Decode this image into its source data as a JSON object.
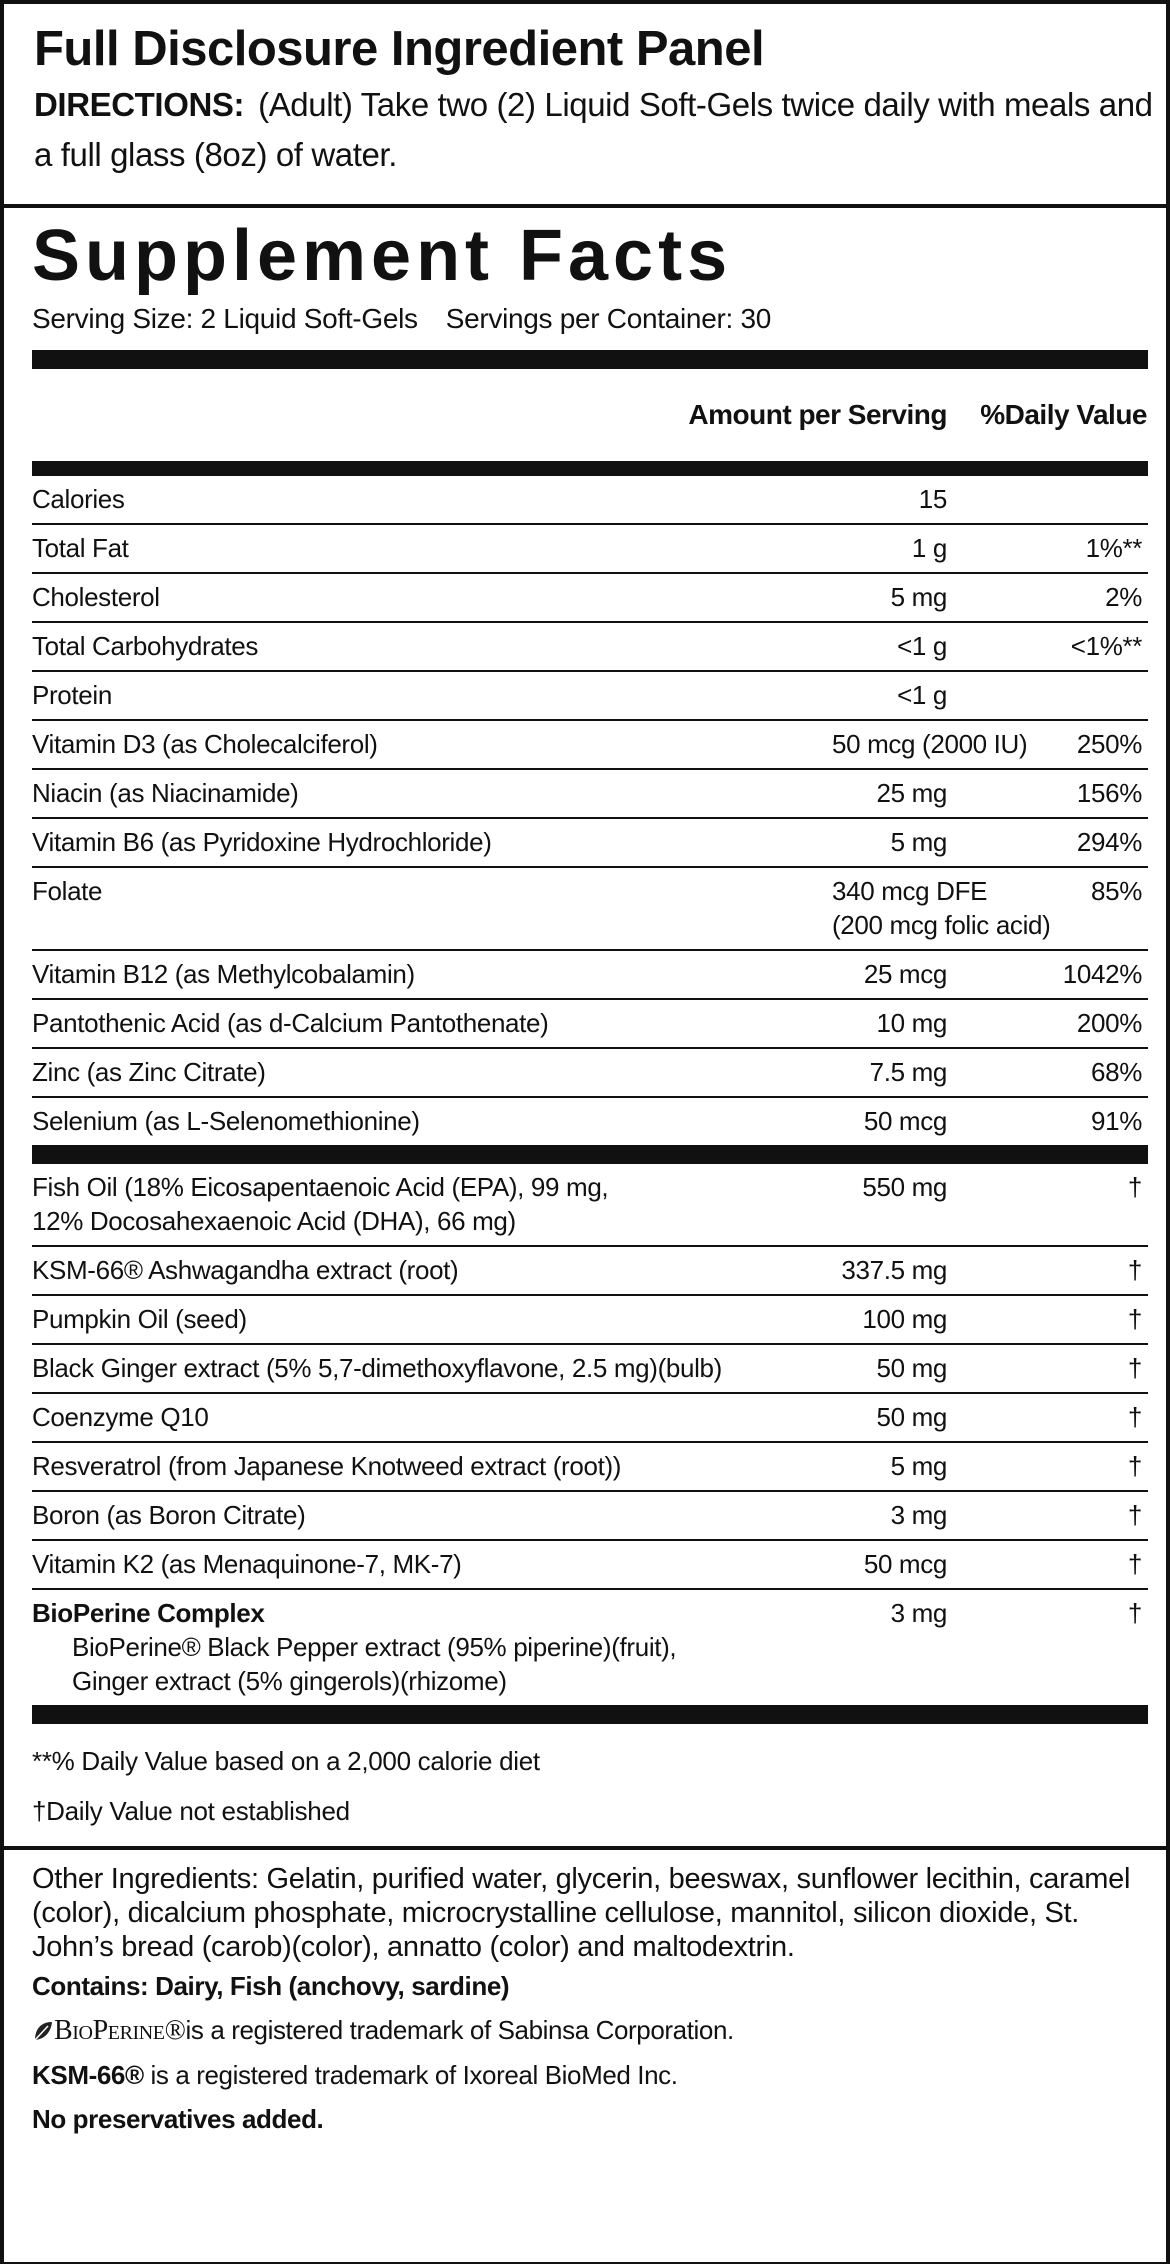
{
  "header": {
    "title": "Full Disclosure Ingredient Panel",
    "directions_label": "DIRECTIONS:",
    "directions": "(Adult) Take two (2) Liquid Soft-Gels twice daily with meals and a full glass (8oz) of water."
  },
  "facts": {
    "title": "Supplement Facts",
    "serving_size": "Serving Size:  2 Liquid Soft-Gels",
    "servings": "Servings per Container:  30",
    "columns": [
      "Amount per Serving",
      "%Daily Value"
    ],
    "rows": [
      {
        "name": "Calories",
        "amount": "15"
      },
      {
        "name": "Total Fat",
        "amount": "1 g",
        "daily_value": "1%**"
      },
      {
        "name": "Cholesterol",
        "amount": "5 mg",
        "daily_value": "2%"
      },
      {
        "name": "Total Carbohydrates",
        "amount": "<1 g",
        "daily_value": "<1%**"
      },
      {
        "name": "Protein",
        "amount": "<1 g"
      },
      {
        "name": "Vitamin D3 (as Cholecalciferol)",
        "amount": "50 mcg (2000 IU)",
        "daily_value": "250%"
      },
      {
        "name": "Niacin (as Niacinamide)",
        "amount": "25 mg",
        "daily_value": "156%"
      },
      {
        "name": "Vitamin B6 (as Pyridoxine Hydrochloride)",
        "amount": "5 mg",
        "daily_value": "294%"
      },
      {
        "name": "Folate",
        "amount": [
          "340 mcg DFE",
          "(200 mcg folic acid)"
        ],
        "daily_value": "85%"
      },
      {
        "name": "Vitamin B12 (as Methylcobalamin)",
        "amount": "25 mcg",
        "daily_value": "1042%"
      },
      {
        "name": "Pantothenic Acid (as d-Calcium Pantothenate)",
        "amount": "10 mg",
        "daily_value": "200%"
      },
      {
        "name": "Zinc (as Zinc Citrate)",
        "amount": "7.5 mg",
        "daily_value": "68%"
      },
      {
        "name": "Selenium (as L-Selenomethionine)",
        "amount": "50 mcg",
        "daily_value": "91%"
      }
    ],
    "other_rows": [
      {
        "name": [
          "Fish Oil (18% Eicosapentaenoic Acid (EPA), 99 mg,",
          "12% Docosahexaenoic Acid (DHA), 66 mg)"
        ],
        "amount": "550 mg",
        "daily_value": "†"
      },
      {
        "name": "KSM-66® Ashwagandha extract (root)",
        "amount": "337.5 mg",
        "daily_value": "†"
      },
      {
        "name": "Pumpkin Oil (seed)",
        "amount": "100 mg",
        "daily_value": "†"
      },
      {
        "name": "Black Ginger extract (5% 5,7-dimethoxyflavone, 2.5 mg)(bulb)",
        "amount": "50 mg",
        "daily_value": "†"
      },
      {
        "name": "Coenzyme Q10",
        "amount": "50 mg",
        "daily_value": "†"
      },
      {
        "name": "Resveratrol (from Japanese Knotweed extract (root))",
        "amount": "5 mg",
        "daily_value": "†"
      },
      {
        "name": "Boron (as Boron Citrate)",
        "amount": "3 mg",
        "daily_value": "†"
      },
      {
        "name": "Vitamin K2 (as Menaquinone-7, MK-7)",
        "amount": "50 mcg",
        "daily_value": "†"
      },
      {
        "name": "BioPerine Complex",
        "amount": "3 mg",
        "daily_value": "†",
        "detail": [
          "BioPerine® Black Pepper extract (95% piperine)(fruit),",
          "Ginger extract (5% gingerols)(rhizome)"
        ]
      }
    ],
    "footnotes": [
      "**% Daily Value based on a 2,000 calorie diet",
      "†Daily Value not established"
    ]
  },
  "other": {
    "ingredients": "Other Ingredients: Gelatin, purified water, glycerin, beeswax, sunflower lecithin, caramel (color), dicalcium phosphate, microcrystalline cellulose, mannitol, silicon dioxide, St. John’s bread (carob)(color), annatto (color) and maltodextrin.",
    "contains": "Contains:  Dairy, Fish (anchovy, sardine)",
    "trademark1_brand": "BioPerine®",
    "trademark1": "is a registered trademark of Sabinsa Corporation.",
    "trademark2_brand": "KSM-66®",
    "trademark2": " is a registered trademark of Ixoreal BioMed Inc.",
    "note": "No preservatives added."
  }
}
